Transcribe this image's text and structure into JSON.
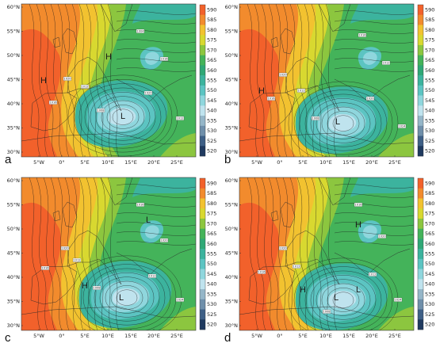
{
  "colors": {
    "c520": "#1f3a5f",
    "c525": "#3e5f86",
    "c530": "#6f8faa",
    "c535": "#95b6c8",
    "c540": "#bfe3ee",
    "c545": "#8fd6dd",
    "c550": "#5cc4c2",
    "c555": "#3cb39e",
    "c560": "#2fa876",
    "c565": "#44b35a",
    "c570": "#8cc63f",
    "c575": "#d8d830",
    "c580": "#f2c230",
    "c585": "#f28b2d",
    "c590": "#f2612b",
    "contour": "#1a1a1a",
    "coast": "#2a2a2a"
  },
  "colorbar_levels": [
    "590",
    "585",
    "580",
    "575",
    "570",
    "565",
    "560",
    "555",
    "550",
    "545",
    "540",
    "535",
    "530",
    "525",
    "520"
  ],
  "lat_labels": [
    "60°N",
    "55°N",
    "50°N",
    "45°N",
    "40°N",
    "35°N",
    "30°N"
  ],
  "lon_labels": [
    "5°W",
    "0°",
    "5°E",
    "10°E",
    "15°E",
    "20°E",
    "25°E"
  ],
  "panels": [
    {
      "label": "a",
      "highs": [
        "H",
        "H"
      ],
      "lows": [
        "L"
      ],
      "contour_labels": [
        "1020",
        "1016",
        "1012",
        "1008",
        "1004",
        "1016",
        "1020",
        "1012"
      ]
    },
    {
      "label": "b",
      "highs": [
        "H"
      ],
      "lows": [
        "L"
      ],
      "contour_labels": [
        "1020",
        "1016",
        "1012",
        "1008",
        "1016",
        "1012",
        "1020",
        "1024"
      ]
    },
    {
      "label": "c",
      "highs": [
        "H"
      ],
      "lows": [
        "L",
        "L"
      ],
      "contour_labels": [
        "1020",
        "1016",
        "1012",
        "1008",
        "1016",
        "1020",
        "1012",
        "1024"
      ]
    },
    {
      "label": "d",
      "highs": [
        "H",
        "H"
      ],
      "lows": [
        "L",
        "L"
      ],
      "contour_labels": [
        "1020",
        "1016",
        "1012",
        "1016",
        "1020",
        "1012",
        "1024",
        "1008"
      ]
    }
  ]
}
